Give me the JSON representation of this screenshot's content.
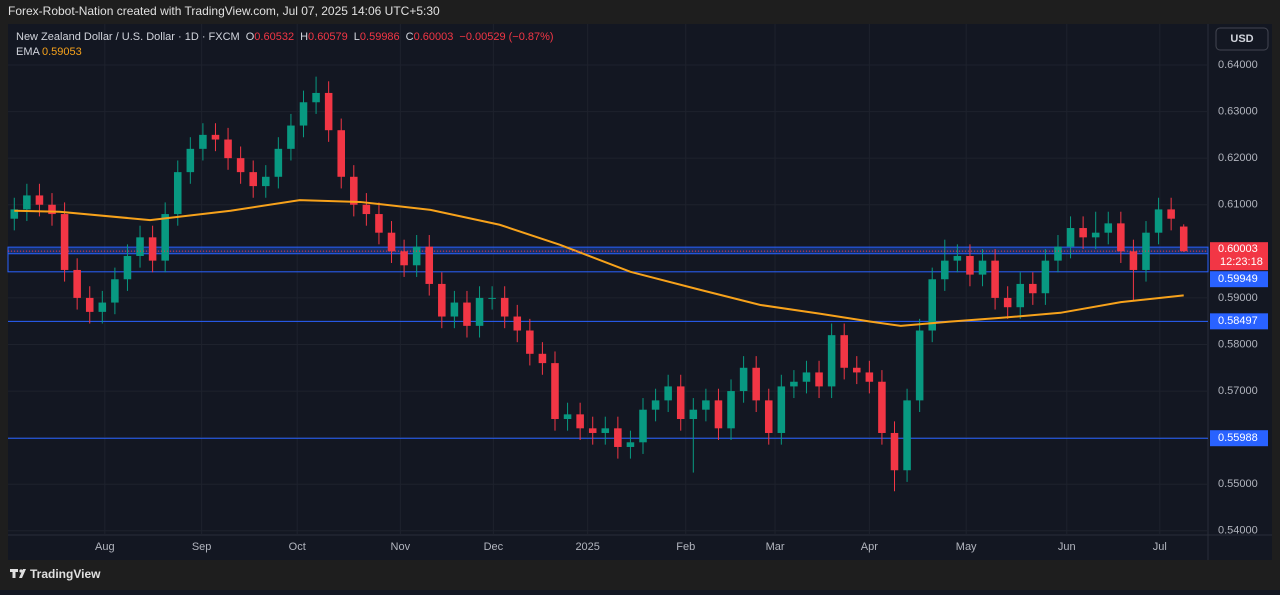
{
  "attribution": "Forex-Robot-Nation created with TradingView.com, Jul 07, 2025 14:06 UTC+5:30",
  "brand": "TradingView",
  "currency": "USD",
  "chart_data": {
    "type": "candlestick",
    "title": "New Zealand Dollar / U.S. Dollar · 1D · FXCM",
    "ohlc_header": [
      {
        "key": "O",
        "value": "0.60532"
      },
      {
        "key": "H",
        "value": "0.60579"
      },
      {
        "key": "L",
        "value": "0.59986"
      },
      {
        "key": "C",
        "value": "0.60003"
      },
      {
        "value": "−0.00529 (−0.87%)"
      }
    ],
    "open": [
      0.607,
      0.609,
      0.612,
      0.61,
      0.608,
      0.596,
      0.59,
      0.587,
      0.589,
      0.594,
      0.599,
      0.603,
      0.598,
      0.608,
      0.617,
      0.622,
      0.625,
      0.624,
      0.62,
      0.617,
      0.614,
      0.616,
      0.622,
      0.627,
      0.632,
      0.634,
      0.626,
      0.616,
      0.61,
      0.608,
      0.604,
      0.6,
      0.597,
      0.601,
      0.593,
      0.586,
      0.589,
      0.584,
      0.59,
      0.59,
      0.586,
      0.583,
      0.578,
      0.576,
      0.564,
      0.565,
      0.562,
      0.561,
      0.562,
      0.558,
      0.559,
      0.566,
      0.568,
      0.571,
      0.564,
      0.566,
      0.568,
      0.562,
      0.57,
      0.575,
      0.568,
      0.561,
      0.571,
      0.572,
      0.574,
      0.571,
      0.582,
      0.575,
      0.574,
      0.572,
      0.561,
      0.553,
      0.568,
      0.583,
      0.594,
      0.598,
      0.599,
      0.595,
      0.598,
      0.59,
      0.588,
      0.593,
      0.591,
      0.598,
      0.601,
      0.605,
      0.603,
      0.604,
      0.606,
      0.6,
      0.596,
      0.604,
      0.609,
      0.60532
    ],
    "high": [
      0.6115,
      0.6145,
      0.6145,
      0.6125,
      0.6105,
      0.5985,
      0.5925,
      0.5915,
      0.5965,
      0.6015,
      0.6055,
      0.6055,
      0.6105,
      0.6195,
      0.6245,
      0.6275,
      0.6275,
      0.6265,
      0.6225,
      0.6195,
      0.6185,
      0.6245,
      0.6295,
      0.6345,
      0.6375,
      0.6365,
      0.6285,
      0.6185,
      0.6125,
      0.6105,
      0.6065,
      0.6025,
      0.6035,
      0.6035,
      0.5955,
      0.5915,
      0.5915,
      0.5925,
      0.5925,
      0.5925,
      0.5885,
      0.5855,
      0.5805,
      0.5785,
      0.5675,
      0.5675,
      0.5645,
      0.5645,
      0.5645,
      0.5615,
      0.5685,
      0.5705,
      0.5735,
      0.5735,
      0.5685,
      0.5705,
      0.5705,
      0.5725,
      0.5775,
      0.5775,
      0.5705,
      0.5735,
      0.5745,
      0.5765,
      0.5765,
      0.5845,
      0.5845,
      0.5775,
      0.5765,
      0.5745,
      0.5635,
      0.5705,
      0.5855,
      0.5965,
      0.6025,
      0.6015,
      0.6015,
      0.6005,
      0.6005,
      0.5925,
      0.5955,
      0.5955,
      0.6005,
      0.6035,
      0.6075,
      0.6075,
      0.6085,
      0.6085,
      0.6085,
      0.6025,
      0.6065,
      0.6115,
      0.6115,
      0.60579
    ],
    "low": [
      0.6045,
      0.6065,
      0.6075,
      0.6055,
      0.5935,
      0.5875,
      0.5845,
      0.5845,
      0.5865,
      0.5915,
      0.5965,
      0.5955,
      0.5955,
      0.6055,
      0.6145,
      0.6195,
      0.6215,
      0.6175,
      0.6145,
      0.6115,
      0.6115,
      0.6135,
      0.6195,
      0.6245,
      0.6295,
      0.6235,
      0.6135,
      0.6075,
      0.6055,
      0.6015,
      0.5975,
      0.5945,
      0.5945,
      0.5905,
      0.5835,
      0.5835,
      0.5815,
      0.5815,
      0.5875,
      0.5835,
      0.5805,
      0.5755,
      0.5735,
      0.5615,
      0.5615,
      0.5595,
      0.5585,
      0.5585,
      0.5555,
      0.5555,
      0.5565,
      0.5635,
      0.5655,
      0.5615,
      0.5525,
      0.5635,
      0.5595,
      0.5595,
      0.5675,
      0.5655,
      0.5585,
      0.5585,
      0.5685,
      0.5695,
      0.5685,
      0.5685,
      0.5725,
      0.5715,
      0.5695,
      0.5585,
      0.5485,
      0.5505,
      0.5655,
      0.5805,
      0.5915,
      0.5955,
      0.5925,
      0.5925,
      0.5875,
      0.5855,
      0.5855,
      0.5885,
      0.5885,
      0.5955,
      0.5985,
      0.6005,
      0.6005,
      0.6015,
      0.5975,
      0.5895,
      0.5935,
      0.6015,
      0.6045,
      0.59986
    ],
    "close": [
      0.609,
      0.612,
      0.61,
      0.608,
      0.596,
      0.59,
      0.587,
      0.589,
      0.594,
      0.599,
      0.603,
      0.598,
      0.608,
      0.617,
      0.622,
      0.625,
      0.624,
      0.62,
      0.617,
      0.614,
      0.616,
      0.622,
      0.627,
      0.632,
      0.634,
      0.626,
      0.616,
      0.61,
      0.608,
      0.604,
      0.6,
      0.597,
      0.601,
      0.593,
      0.586,
      0.589,
      0.584,
      0.59,
      0.59,
      0.586,
      0.583,
      0.578,
      0.576,
      0.564,
      0.565,
      0.562,
      0.561,
      0.562,
      0.558,
      0.559,
      0.566,
      0.568,
      0.571,
      0.564,
      0.566,
      0.568,
      0.562,
      0.57,
      0.575,
      0.568,
      0.561,
      0.571,
      0.572,
      0.574,
      0.571,
      0.582,
      0.575,
      0.574,
      0.572,
      0.561,
      0.553,
      0.568,
      0.583,
      0.594,
      0.598,
      0.599,
      0.595,
      0.598,
      0.59,
      0.588,
      0.593,
      0.591,
      0.598,
      0.601,
      0.605,
      0.603,
      0.604,
      0.606,
      0.6,
      0.596,
      0.604,
      0.609,
      0.607,
      0.60003
    ],
    "up_color": "#089981",
    "down_color": "#f23645",
    "xlim": [
      -0.5,
      93.5
    ],
    "xticks": [
      {
        "value": 7.2,
        "label": "Aug"
      },
      {
        "value": 14.9,
        "label": "Sep"
      },
      {
        "value": 22.5,
        "label": "Oct"
      },
      {
        "value": 30.7,
        "label": "Nov"
      },
      {
        "value": 38.1,
        "label": "Dec"
      },
      {
        "value": 45.6,
        "label": "2025"
      },
      {
        "value": 53.4,
        "label": "Feb"
      },
      {
        "value": 60.5,
        "label": "Mar"
      },
      {
        "value": 68.0,
        "label": "Apr"
      },
      {
        "value": 75.7,
        "label": "May"
      },
      {
        "value": 83.7,
        "label": "Jun"
      },
      {
        "value": 91.1,
        "label": "Jul"
      }
    ],
    "ylim": [
      0.5391,
      0.6488
    ],
    "yticks": [
      {
        "value": 0.54,
        "label": "0.54000"
      },
      {
        "value": 0.55,
        "label": "0.55000"
      },
      {
        "value": 0.56,
        "label": "0.56000"
      },
      {
        "value": 0.57,
        "label": "0.57000"
      },
      {
        "value": 0.58,
        "label": "0.58000"
      },
      {
        "value": 0.59,
        "label": "0.59000"
      },
      {
        "value": 0.6,
        "label": "0.60000"
      },
      {
        "value": 0.61,
        "label": "0.61000"
      },
      {
        "value": 0.62,
        "label": "0.62000"
      },
      {
        "value": 0.63,
        "label": "0.63000"
      },
      {
        "value": 0.64,
        "label": "0.64000"
      }
    ],
    "grid": true,
    "ema": {
      "name": "EMA",
      "color": "#f7a21b",
      "x": [
        0,
        3.6,
        10.8,
        17.2,
        22.7,
        27.5,
        33.1,
        38.6,
        43.4,
        49,
        54.6,
        59.3,
        64.1,
        68.1,
        70.5,
        74.4,
        78.4,
        83.2,
        88,
        93
      ],
      "values": [
        0.6087,
        0.6085,
        0.6067,
        0.6087,
        0.611,
        0.6106,
        0.6089,
        0.6057,
        0.6014,
        0.5956,
        0.5917,
        0.5885,
        0.5866,
        0.5849,
        0.584,
        0.5849,
        0.5857,
        0.5868,
        0.5891,
        0.59053
      ]
    },
    "zone": [
      0.5956,
      0.6009
    ],
    "levels": [
      0.59949,
      0.58497,
      0.55988
    ],
    "level_color": "#2962ff",
    "countdown": "12:23:18"
  }
}
